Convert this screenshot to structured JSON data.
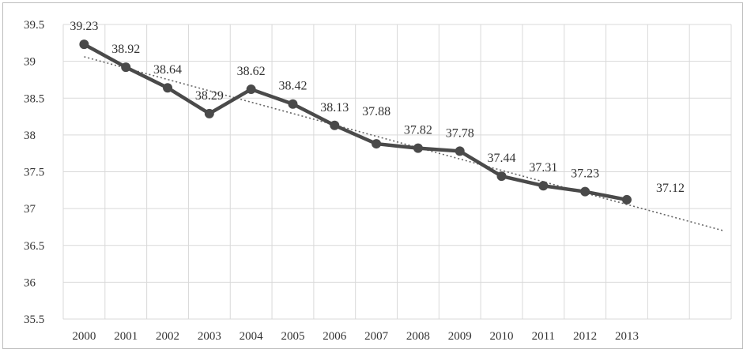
{
  "chart_data": {
    "type": "line",
    "title": "",
    "xlabel": "",
    "ylabel": "",
    "categories": [
      "2000",
      "2001",
      "2002",
      "2003",
      "2004",
      "2005",
      "2006",
      "2007",
      "2008",
      "2009",
      "2010",
      "2011",
      "2012",
      "2013"
    ],
    "series": [
      {
        "values": [
          39.23,
          38.92,
          38.64,
          38.29,
          38.62,
          38.42,
          38.13,
          37.88,
          37.82,
          37.78,
          37.44,
          37.31,
          37.23,
          37.12
        ]
      }
    ],
    "data_labels": [
      "39.23",
      "38.92",
      "38.64",
      "38.29",
      "38.62",
      "38.42",
      "38.13",
      "37.88",
      "37.82",
      "37.78",
      "37.44",
      "37.31",
      "37.23",
      "37.12"
    ],
    "trendline": {
      "style": "dotted",
      "type": "linear"
    },
    "ylim": [
      35.5,
      39.5
    ],
    "yticks": [
      "35.5",
      "36",
      "36.5",
      "37",
      "37.5",
      "38",
      "38.5",
      "39",
      "39.5"
    ],
    "grid": true,
    "legend": "none",
    "colors": {
      "line": "#4a4a4a",
      "grid": "#d9d9d9",
      "trend": "#666666"
    }
  }
}
